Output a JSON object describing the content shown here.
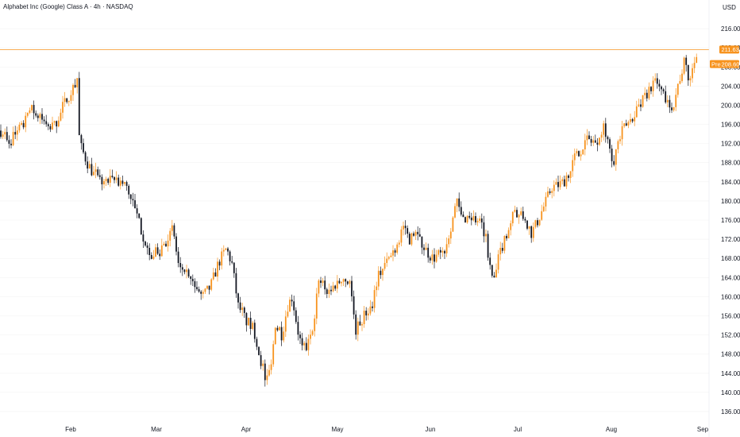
{
  "header": {
    "title": "Alphabet Inc (Google) Class A · 4h · NASDAQ"
  },
  "colors": {
    "up": "#f7931e",
    "down": "#131722",
    "price_line": "#f7931e",
    "badge_pre": "#f7931e",
    "grid": "#f3f3f3",
    "axis_text": "#131722"
  },
  "chart_data": {
    "type": "candlestick",
    "title": "Alphabet Inc (Google) Class A · 4h · NASDAQ",
    "currency": "USD",
    "ylim": [
      134,
      219
    ],
    "y_ticks": [
      "216.00",
      "212.00",
      "208.00",
      "204.00",
      "200.00",
      "196.00",
      "192.00",
      "188.00",
      "184.00",
      "180.00",
      "176.00",
      "172.00",
      "168.00",
      "164.00",
      "160.00",
      "156.00",
      "152.00",
      "148.00",
      "144.00",
      "140.00",
      "136.00"
    ],
    "x_ticks": [
      "Feb",
      "Mar",
      "Apr",
      "May",
      "Jun",
      "Jul",
      "Aug",
      "Sep"
    ],
    "last_price": {
      "label": "211.63",
      "value": 211.63
    },
    "pre_price": {
      "tag": "Pre",
      "label": "208.60",
      "value": 208.6
    },
    "grid": true,
    "path_points": [
      [
        0,
        195
      ],
      [
        10,
        192
      ],
      [
        20,
        194
      ],
      [
        30,
        196
      ],
      [
        40,
        199
      ],
      [
        50,
        198
      ],
      [
        60,
        195
      ],
      [
        70,
        196
      ],
      [
        80,
        200
      ],
      [
        90,
        203
      ],
      [
        98,
        206
      ],
      [
        100,
        192
      ],
      [
        110,
        188
      ],
      [
        120,
        185
      ],
      [
        130,
        184
      ],
      [
        140,
        184
      ],
      [
        150,
        184
      ],
      [
        160,
        183
      ],
      [
        170,
        178
      ],
      [
        180,
        173
      ],
      [
        190,
        168
      ],
      [
        200,
        170
      ],
      [
        210,
        172
      ],
      [
        218,
        174
      ],
      [
        225,
        166
      ],
      [
        235,
        164
      ],
      [
        245,
        162
      ],
      [
        255,
        160
      ],
      [
        265,
        162
      ],
      [
        275,
        167
      ],
      [
        285,
        170
      ],
      [
        292,
        167
      ],
      [
        300,
        158
      ],
      [
        310,
        155
      ],
      [
        320,
        153
      ],
      [
        328,
        147
      ],
      [
        335,
        142
      ],
      [
        340,
        145
      ],
      [
        348,
        155
      ],
      [
        355,
        152
      ],
      [
        362,
        158
      ],
      [
        368,
        160
      ],
      [
        375,
        153
      ],
      [
        382,
        148
      ],
      [
        388,
        150
      ],
      [
        395,
        155
      ],
      [
        400,
        162
      ],
      [
        405,
        164
      ],
      [
        412,
        161
      ],
      [
        420,
        162
      ],
      [
        430,
        164
      ],
      [
        440,
        164
      ],
      [
        448,
        153
      ],
      [
        455,
        155
      ],
      [
        462,
        157
      ],
      [
        468,
        158
      ],
      [
        475,
        164
      ],
      [
        482,
        166
      ],
      [
        490,
        168
      ],
      [
        500,
        171
      ],
      [
        508,
        175
      ],
      [
        515,
        172
      ],
      [
        525,
        173
      ],
      [
        535,
        170
      ],
      [
        545,
        168
      ],
      [
        555,
        169
      ],
      [
        562,
        171
      ],
      [
        568,
        175
      ],
      [
        575,
        180
      ],
      [
        582,
        176
      ],
      [
        590,
        177
      ],
      [
        600,
        176
      ],
      [
        608,
        174
      ],
      [
        612,
        172
      ],
      [
        618,
        165
      ],
      [
        622,
        163
      ],
      [
        628,
        168
      ],
      [
        635,
        172
      ],
      [
        642,
        175
      ],
      [
        648,
        178
      ],
      [
        655,
        177
      ],
      [
        662,
        176
      ],
      [
        668,
        173
      ],
      [
        675,
        175
      ],
      [
        680,
        177
      ],
      [
        688,
        180
      ],
      [
        695,
        183
      ],
      [
        700,
        183
      ],
      [
        710,
        184
      ],
      [
        718,
        187
      ],
      [
        725,
        190
      ],
      [
        732,
        191
      ],
      [
        740,
        193
      ],
      [
        750,
        192
      ],
      [
        760,
        196
      ],
      [
        768,
        192
      ],
      [
        772,
        188
      ],
      [
        778,
        192
      ],
      [
        785,
        195
      ],
      [
        795,
        197
      ],
      [
        800,
        199
      ],
      [
        810,
        201
      ],
      [
        820,
        204
      ],
      [
        830,
        204
      ],
      [
        840,
        201
      ],
      [
        848,
        200
      ],
      [
        855,
        205
      ],
      [
        862,
        209
      ],
      [
        868,
        205
      ],
      [
        873,
        208
      ],
      [
        878,
        212
      ]
    ]
  }
}
